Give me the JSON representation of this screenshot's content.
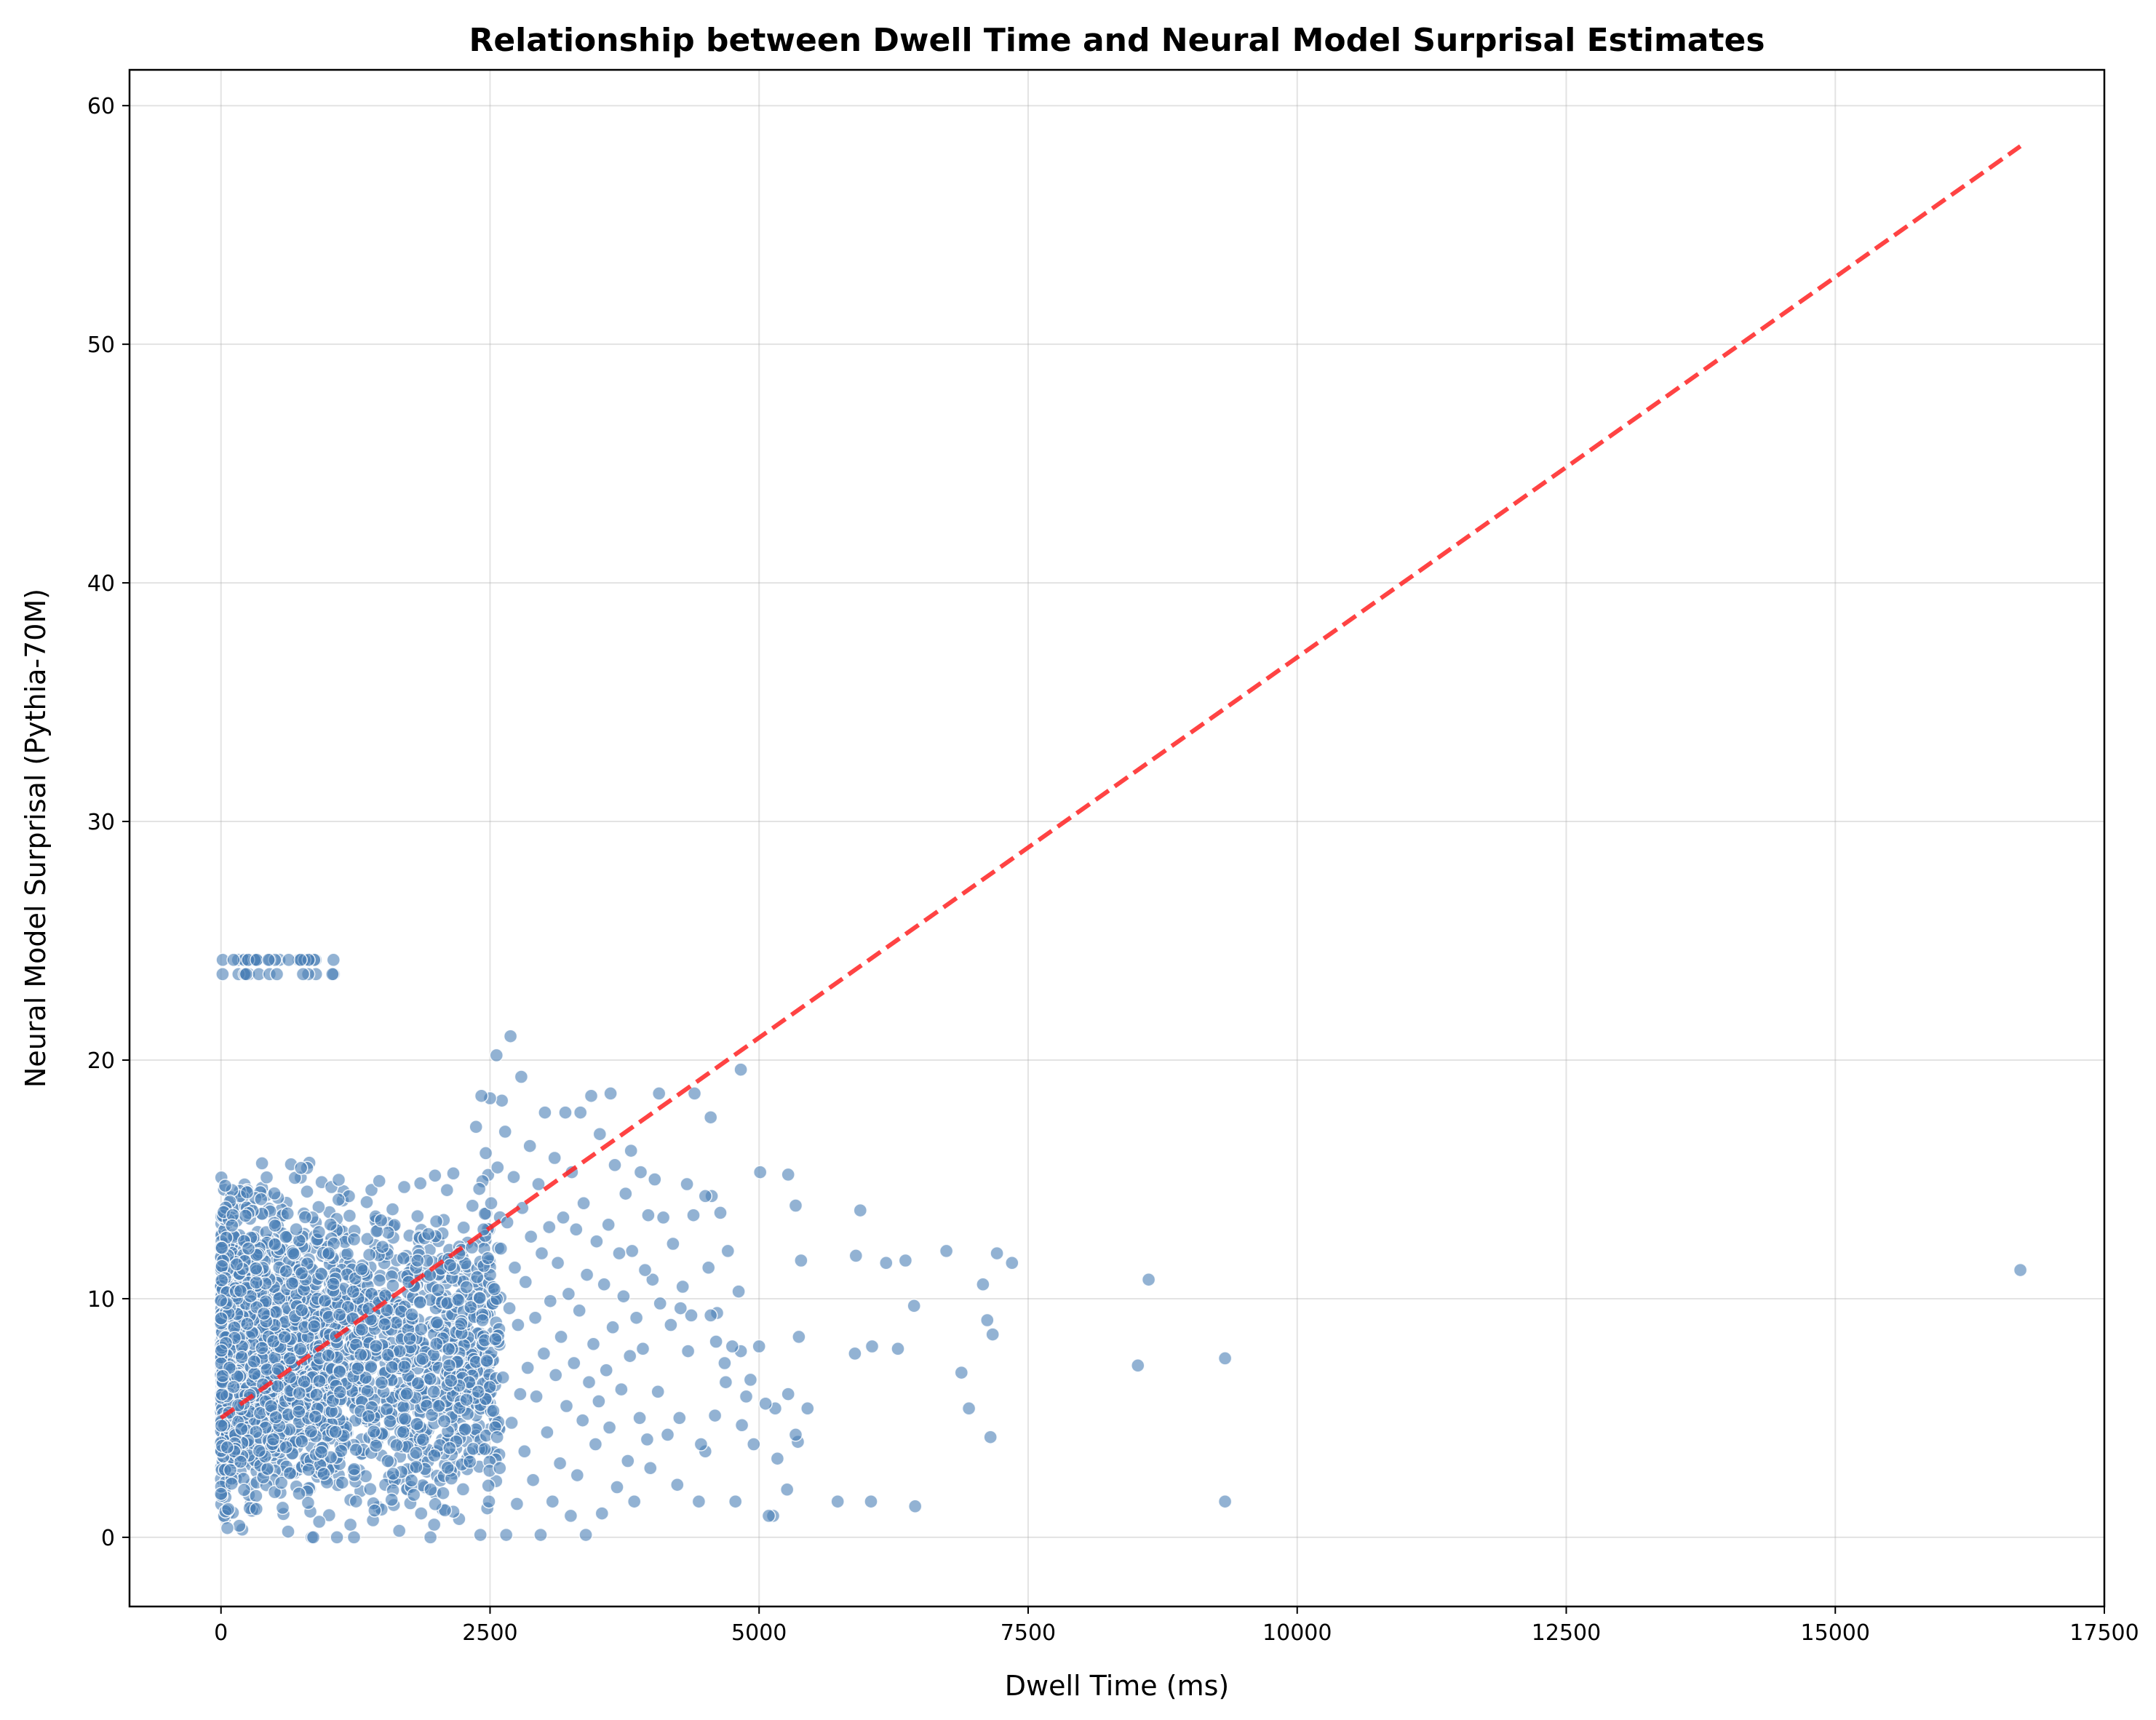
{
  "chart_data": {
    "type": "scatter",
    "title": "Relationship between Dwell Time and Neural Model Surprisal Estimates",
    "xlabel": "Dwell Time (ms)",
    "ylabel": "Neural Model Surprisal (Pythia-70M)",
    "xlim": [
      -850,
      17500
    ],
    "ylim": [
      -2.9,
      61.5
    ],
    "x_ticks": [
      0,
      2500,
      5000,
      7500,
      10000,
      12500,
      15000,
      17500
    ],
    "x_tick_labels": [
      "0",
      "2500",
      "5000",
      "7500",
      "10000",
      "12500",
      "15000",
      "17500"
    ],
    "y_ticks": [
      0,
      10,
      20,
      30,
      40,
      50,
      60
    ],
    "y_tick_labels": [
      "0",
      "10",
      "20",
      "30",
      "40",
      "50",
      "60"
    ],
    "grid": true,
    "point_color": "#4a7fb5",
    "trend_line": {
      "color": "#ff2222",
      "style": "dashed",
      "x": [
        0,
        16720
      ],
      "y": [
        5.0,
        58.3
      ]
    },
    "dense_cluster": {
      "x_range": [
        0,
        2600
      ],
      "y_range": [
        0,
        22.7
      ],
      "upper_band_y": [
        23.6,
        24.2
      ]
    },
    "points": [
      [
        16720,
        11.2
      ],
      [
        9330,
        7.5
      ],
      [
        9330,
        1.5
      ],
      [
        8620,
        10.8
      ],
      [
        8520,
        7.2
      ],
      [
        7350,
        11.5
      ],
      [
        7210,
        11.9
      ],
      [
        7170,
        8.5
      ],
      [
        7150,
        4.2
      ],
      [
        7120,
        9.1
      ],
      [
        7080,
        10.6
      ],
      [
        6950,
        5.4
      ],
      [
        6880,
        6.9
      ],
      [
        6740,
        12.0
      ],
      [
        6440,
        9.7
      ],
      [
        6450,
        1.3
      ],
      [
        6360,
        11.6
      ],
      [
        6290,
        7.9
      ],
      [
        6180,
        11.5
      ],
      [
        6050,
        8.0
      ],
      [
        6040,
        1.5
      ],
      [
        5940,
        13.7
      ],
      [
        5900,
        11.8
      ],
      [
        5890,
        7.7
      ],
      [
        5730,
        1.5
      ],
      [
        5450,
        5.4
      ],
      [
        5390,
        11.6
      ],
      [
        5370,
        8.4
      ],
      [
        5360,
        4.0
      ],
      [
        5340,
        13.9
      ],
      [
        5340,
        4.3
      ],
      [
        5270,
        15.2
      ],
      [
        5270,
        6.0
      ],
      [
        5260,
        2.0
      ],
      [
        5170,
        3.3
      ],
      [
        5150,
        5.4
      ],
      [
        5130,
        0.9
      ],
      [
        5090,
        0.9
      ],
      [
        5060,
        5.6
      ],
      [
        5010,
        15.3
      ],
      [
        5000,
        8.0
      ],
      [
        4950,
        3.9
      ],
      [
        4920,
        6.6
      ],
      [
        4880,
        5.9
      ],
      [
        4840,
        4.7
      ],
      [
        4830,
        19.6
      ],
      [
        4830,
        7.8
      ],
      [
        4810,
        10.3
      ],
      [
        4780,
        1.5
      ],
      [
        4750,
        8.0
      ],
      [
        4710,
        12.0
      ],
      [
        4690,
        6.5
      ],
      [
        4680,
        7.3
      ],
      [
        4640,
        13.6
      ],
      [
        4610,
        9.4
      ],
      [
        4600,
        8.2
      ],
      [
        4590,
        5.1
      ],
      [
        4560,
        14.3
      ],
      [
        4550,
        9.3
      ],
      [
        4550,
        17.6
      ],
      [
        4530,
        11.3
      ],
      [
        4500,
        14.3
      ],
      [
        4500,
        3.6
      ],
      [
        4460,
        3.9
      ],
      [
        4440,
        1.5
      ],
      [
        4400,
        18.6
      ],
      [
        4390,
        13.5
      ],
      [
        4370,
        9.3
      ],
      [
        4340,
        7.8
      ],
      [
        4330,
        14.8
      ],
      [
        4290,
        10.5
      ],
      [
        4270,
        9.6
      ],
      [
        4260,
        5.0
      ],
      [
        4240,
        2.2
      ],
      [
        4200,
        12.3
      ],
      [
        4180,
        8.9
      ],
      [
        4150,
        4.3
      ],
      [
        4110,
        13.4
      ],
      [
        4080,
        9.8
      ],
      [
        4070,
        18.6
      ],
      [
        4060,
        6.1
      ],
      [
        4030,
        15.0
      ],
      [
        4010,
        10.8
      ],
      [
        3990,
        2.9
      ],
      [
        3970,
        13.5
      ],
      [
        3960,
        4.1
      ],
      [
        3940,
        11.2
      ],
      [
        3920,
        7.9
      ],
      [
        3900,
        15.3
      ],
      [
        3890,
        5.0
      ],
      [
        3860,
        9.2
      ],
      [
        3840,
        1.5
      ],
      [
        3820,
        12.0
      ],
      [
        3810,
        16.2
      ],
      [
        3800,
        7.6
      ],
      [
        3780,
        3.2
      ],
      [
        3760,
        14.4
      ],
      [
        3740,
        10.1
      ],
      [
        3720,
        6.2
      ],
      [
        3700,
        11.9
      ],
      [
        3680,
        2.1
      ],
      [
        3660,
        15.6
      ],
      [
        3640,
        8.8
      ],
      [
        3620,
        18.6
      ],
      [
        3610,
        4.6
      ],
      [
        3600,
        13.1
      ],
      [
        3580,
        7.0
      ],
      [
        3560,
        10.6
      ],
      [
        3540,
        1.0
      ],
      [
        3520,
        16.9
      ],
      [
        3510,
        5.7
      ],
      [
        3490,
        12.4
      ],
      [
        3480,
        3.9
      ],
      [
        3460,
        8.1
      ],
      [
        3440,
        18.5
      ],
      [
        3420,
        6.5
      ],
      [
        3400,
        11.0
      ],
      [
        3390,
        0.1
      ],
      [
        3370,
        14.0
      ],
      [
        3360,
        4.9
      ],
      [
        3340,
        17.8
      ],
      [
        3330,
        9.5
      ],
      [
        3310,
        2.6
      ],
      [
        3300,
        12.9
      ],
      [
        3280,
        7.3
      ],
      [
        3260,
        15.3
      ],
      [
        3250,
        0.9
      ],
      [
        3230,
        10.2
      ],
      [
        3210,
        5.5
      ],
      [
        3200,
        17.8
      ],
      [
        3180,
        13.4
      ],
      [
        3160,
        8.4
      ],
      [
        3150,
        3.1
      ],
      [
        3130,
        11.5
      ],
      [
        3110,
        6.8
      ],
      [
        3100,
        15.9
      ],
      [
        3080,
        1.5
      ],
      [
        3060,
        9.9
      ],
      [
        3050,
        13.0
      ],
      [
        3030,
        4.4
      ],
      [
        3010,
        17.8
      ],
      [
        3000,
        7.7
      ],
      [
        2980,
        11.9
      ],
      [
        2970,
        0.1
      ],
      [
        2950,
        14.8
      ],
      [
        2930,
        5.9
      ],
      [
        2920,
        9.2
      ],
      [
        2900,
        2.4
      ],
      [
        2880,
        12.6
      ],
      [
        2870,
        16.4
      ],
      [
        2850,
        7.1
      ],
      [
        2830,
        10.7
      ],
      [
        2820,
        3.6
      ],
      [
        2800,
        13.8
      ],
      [
        2790,
        19.3
      ],
      [
        2780,
        6.0
      ],
      [
        2760,
        8.9
      ],
      [
        2750,
        1.4
      ],
      [
        2730,
        11.3
      ],
      [
        2720,
        15.1
      ],
      [
        2700,
        4.8
      ],
      [
        2690,
        21.0
      ],
      [
        2680,
        9.6
      ],
      [
        2660,
        13.2
      ],
      [
        2650,
        0.1
      ],
      [
        2640,
        17.0
      ],
      [
        2620,
        6.7
      ],
      [
        2610,
        18.3
      ],
      [
        2600,
        12.1
      ],
      [
        2590,
        2.9
      ],
      [
        2570,
        15.5
      ],
      [
        2560,
        20.2
      ],
      [
        2550,
        8.3
      ],
      [
        2540,
        10.4
      ],
      [
        2530,
        5.3
      ],
      [
        2510,
        14.0
      ],
      [
        2500,
        18.4
      ],
      [
        2490,
        1.5
      ],
      [
        2480,
        11.7
      ],
      [
        2470,
        7.4
      ],
      [
        2460,
        16.1
      ],
      [
        2450,
        3.7
      ],
      [
        2440,
        12.9
      ],
      [
        2430,
        9.1
      ],
      [
        2420,
        18.5
      ],
      [
        2410,
        0.1
      ],
      [
        2400,
        14.6
      ],
      [
        2390,
        6.1
      ],
      [
        2380,
        10.9
      ],
      [
        2370,
        17.2
      ]
    ]
  }
}
